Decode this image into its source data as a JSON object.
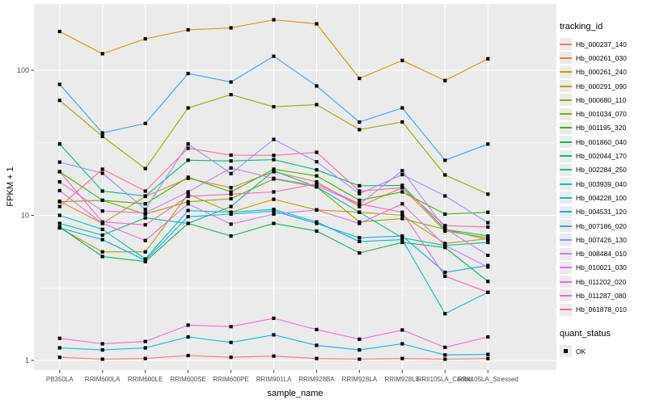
{
  "colors": {
    "panel_bg": "#EBEBEB",
    "grid": "#FFFFFF",
    "tick_mark": "#333333",
    "tick_label": "#4D4D4D",
    "marker": "#000000",
    "legend_key_bg": "#EBEBEB"
  },
  "axes": {
    "x_title": "sample_name",
    "y_title": "FPKM + 1",
    "y_tick_labels": [
      "100",
      "10",
      "1"
    ],
    "y_tick_values": [
      100,
      10,
      1
    ],
    "y_minor_values": [
      31.623,
      3.1623
    ]
  },
  "legend": {
    "tracking_title": "tracking_id",
    "quant_title": "quant_status",
    "quant_value": "OK"
  },
  "chart_data": {
    "type": "line",
    "title": "",
    "xlabel": "sample_name",
    "ylabel": "FPKM + 1",
    "y_scale": "log10",
    "ylim": [
      0.86,
      290
    ],
    "grid": true,
    "legend_position": "right",
    "categories": [
      "PB350LA",
      "RRIM600LA",
      "RRIM600LE",
      "RRIM600SE",
      "RRIM600PE",
      "RRIM901LA",
      "RRIM928BA",
      "RRIM928LA",
      "RRIM928LE",
      "RRII105LA_Control",
      "RRII105LA_Stressed"
    ],
    "quant_status": "OK",
    "series": [
      {
        "name": "Hb_000237_140",
        "color": "#F8766D",
        "values": [
          1.05,
          1.02,
          1.03,
          1.08,
          1.05,
          1.07,
          1.03,
          1.02,
          1.03,
          1.02,
          1.03
        ]
      },
      {
        "name": "Hb_000261_030",
        "color": "#EA8331",
        "values": [
          12.5,
          8.8,
          13.5,
          18,
          15.5,
          20,
          17,
          11.5,
          15.5,
          7.8,
          7.0
        ]
      },
      {
        "name": "Hb_000261_240",
        "color": "#D89000",
        "values": [
          185,
          130,
          165,
          190,
          196,
          223,
          209,
          88,
          117,
          85,
          120
        ]
      },
      {
        "name": "Hb_000291_090",
        "color": "#C09B00",
        "values": [
          8.2,
          5.6,
          5.6,
          14,
          10.5,
          12.9,
          10.9,
          10.5,
          10,
          6.4,
          6.9
        ]
      },
      {
        "name": "Hb_000680_110",
        "color": "#A3A500",
        "values": [
          62,
          35,
          21,
          55,
          68,
          56,
          58,
          39,
          44,
          19,
          14
        ]
      },
      {
        "name": "Hb_001034_070",
        "color": "#7CAE00",
        "values": [
          12.4,
          12.7,
          10.2,
          12.4,
          13,
          17.8,
          15.7,
          9,
          9.5,
          8,
          6.8
        ]
      },
      {
        "name": "Hb_001195_320",
        "color": "#39B600",
        "values": [
          20,
          12.7,
          12,
          18.3,
          14.5,
          20.8,
          18.7,
          12.7,
          14.5,
          10.2,
          10.5
        ]
      },
      {
        "name": "Hb_001860_040",
        "color": "#00BB4E",
        "values": [
          8.3,
          5.2,
          4.8,
          8.8,
          7.2,
          8.8,
          7.8,
          5.5,
          6.5,
          6,
          3.5
        ]
      },
      {
        "name": "Hb_002044_170",
        "color": "#00BF7D",
        "values": [
          31,
          14.7,
          13.6,
          24,
          23.7,
          24.2,
          20.6,
          16,
          16.1,
          8,
          7.2
        ]
      },
      {
        "name": "Hb_002284_250",
        "color": "#00C1A3",
        "values": [
          8.8,
          7.3,
          9.6,
          8.8,
          11.5,
          20.3,
          15.7,
          10.5,
          7,
          6.2,
          6.5
        ]
      },
      {
        "name": "Hb_003939_040",
        "color": "#00BFC4",
        "values": [
          10,
          8,
          5,
          10.8,
          10.5,
          11,
          9,
          6.6,
          6.8,
          2.1,
          2.95
        ]
      },
      {
        "name": "Hb_004228_100",
        "color": "#00BAE0",
        "values": [
          1.22,
          1.18,
          1.22,
          1.45,
          1.33,
          1.5,
          1.27,
          1.18,
          1.3,
          1.09,
          1.1
        ]
      },
      {
        "name": "Hb_004531_120",
        "color": "#00B0F6",
        "values": [
          8.2,
          6.8,
          4.9,
          9.8,
          10.2,
          10.7,
          8.8,
          7,
          7.2,
          4.05,
          4.5
        ]
      },
      {
        "name": "Hb_007186_020",
        "color": "#35A2FF",
        "values": [
          80,
          37,
          43,
          95,
          83,
          125,
          78,
          44,
          55,
          24,
          31
        ]
      },
      {
        "name": "Hb_007426_130",
        "color": "#9590FF",
        "values": [
          23.3,
          19.5,
          11,
          31,
          19.4,
          33.4,
          23.4,
          14.1,
          19.1,
          13.6,
          8.9
        ]
      },
      {
        "name": "Hb_008484_010",
        "color": "#C77CFF",
        "values": [
          17,
          10.7,
          10.4,
          14.5,
          21.2,
          18,
          16,
          11.9,
          20.3,
          8.1,
          5.3
        ]
      },
      {
        "name": "Hb_010021_030",
        "color": "#E76BF3",
        "values": [
          14.8,
          8.8,
          6.7,
          12,
          8.7,
          10.2,
          10.9,
          8.8,
          12,
          6.2,
          4.4
        ]
      },
      {
        "name": "Hb_011202_020",
        "color": "#FA62DB",
        "values": [
          1.42,
          1.3,
          1.35,
          1.75,
          1.71,
          1.95,
          1.63,
          1.4,
          1.62,
          1.23,
          1.45
        ]
      },
      {
        "name": "Hb_011287_080",
        "color": "#FF62BC",
        "values": [
          20,
          9,
          8.6,
          13.5,
          14,
          14.5,
          16.5,
          12,
          10.5,
          3.8,
          2.95
        ]
      },
      {
        "name": "Hb_061878_010",
        "color": "#FF6A98",
        "values": [
          11.5,
          20.8,
          14.7,
          29,
          26,
          25.9,
          27.2,
          14.7,
          15.5,
          8.5,
          8.3
        ]
      }
    ]
  }
}
